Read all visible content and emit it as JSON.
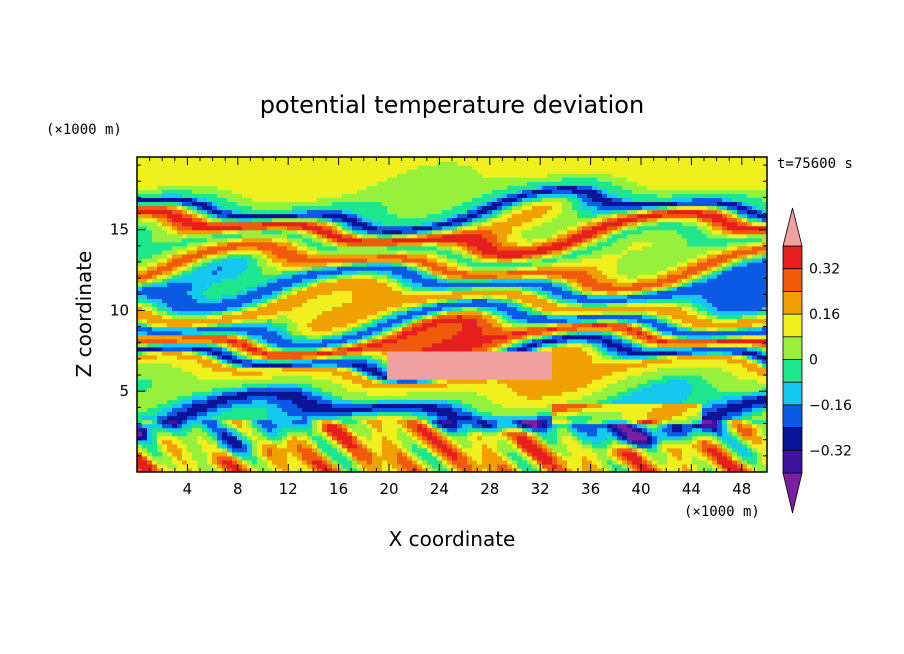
{
  "chart_data": {
    "type": "heatmap",
    "title": "potential temperature deviation",
    "xlabel": "X coordinate",
    "ylabel": "Z coordinate",
    "x_unit": "(×1000 m)",
    "y_unit": "(×1000 m)",
    "time_label": "t=75600 s",
    "xlim": [
      0,
      50
    ],
    "ylim": [
      0,
      19.5
    ],
    "x_ticks": [
      4,
      8,
      12,
      16,
      20,
      24,
      28,
      32,
      36,
      40,
      44,
      48
    ],
    "y_ticks": [
      5,
      10,
      15
    ],
    "colorbar": {
      "levels": [
        -0.48,
        -0.4,
        -0.32,
        -0.24,
        -0.16,
        -0.08,
        0,
        0.08,
        0.16,
        0.24,
        0.32,
        0.4
      ],
      "colors": [
        "#7a1fa2",
        "#3c14a0",
        "#0a1496",
        "#0a5ae6",
        "#14c8f0",
        "#1ee68c",
        "#96f03c",
        "#f0f01e",
        "#f0a000",
        "#f05a0a",
        "#e61e1e",
        "#f0a0a0"
      ],
      "tick_labels": [
        "0.32",
        "0.16",
        "0",
        "−0.16",
        "−0.32"
      ],
      "tick_values": [
        0.32,
        0.16,
        0,
        -0.16,
        -0.32
      ],
      "extend": "both"
    },
    "bands": [
      {
        "z": 18.2,
        "value": 0.03
      },
      {
        "z": 16.8,
        "value": -0.1
      },
      {
        "z": 16.2,
        "value": -0.35
      },
      {
        "z": 14.9,
        "value": 0.28
      },
      {
        "z": 13.9,
        "value": -0.1
      },
      {
        "z": 12.7,
        "value": 0.2
      },
      {
        "z": 11.6,
        "value": -0.3
      },
      {
        "z": 10.3,
        "value": 0.15
      },
      {
        "z": 9.2,
        "value": -0.3
      },
      {
        "z": 8.2,
        "value": 0.25
      },
      {
        "z": 7.0,
        "value": -0.35
      },
      {
        "z": 6.3,
        "value": 0.1
      },
      {
        "z": 5.0,
        "value": -0.02
      },
      {
        "z": 3.6,
        "value": -0.35
      },
      {
        "z": 1.8,
        "value": 0.08
      }
    ]
  }
}
